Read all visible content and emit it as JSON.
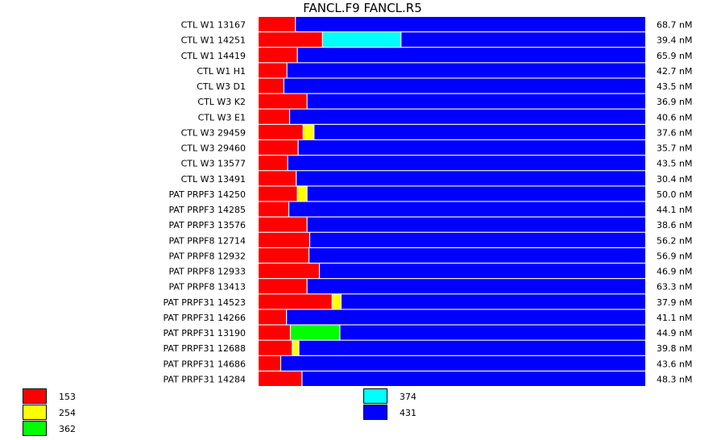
{
  "chart_data": {
    "type": "bar",
    "orientation": "horizontal",
    "stacked": true,
    "normalized": true,
    "title": "FANCL.F9  FANCL.R5",
    "value_unit": "fraction of row",
    "categories": [
      "CTL W1 13167",
      "CTL W1 14251",
      "CTL W1 14419",
      "CTL W1 H1",
      "CTL W3 D1",
      "CTL W3 K2",
      "CTL W3 E1",
      "CTL W3 29459",
      "CTL W3 29460",
      "CTL W3 13577",
      "CTL W3 13491",
      "PAT PRPF3 14250",
      "PAT PRPF3 14285",
      "PAT PRPF3 13576",
      "PAT PRPF8 12714",
      "PAT PRPF8 12932",
      "PAT PRPF8 12933",
      "PAT PRPF8 13413",
      "PAT PRPF31 14523",
      "PAT PRPF31 14266",
      "PAT PRPF31 13190",
      "PAT PRPF31 12688",
      "PAT PRPF31 14686",
      "PAT PRPF31 14284"
    ],
    "concentrations": [
      "68.7 nM",
      "39.4 nM",
      "65.9 nM",
      "42.7 nM",
      "43.5 nM",
      "36.9 nM",
      "40.6 nM",
      "37.6 nM",
      "35.7 nM",
      "43.5 nM",
      "30.4 nM",
      "50.0 nM",
      "44.1 nM",
      "38.6 nM",
      "56.2 nM",
      "56.9 nM",
      "46.9 nM",
      "63.3 nM",
      "37.9 nM",
      "41.1 nM",
      "44.9 nM",
      "39.8 nM",
      "43.6 nM",
      "48.3 nM"
    ],
    "series": [
      {
        "name": "153",
        "color": "#ff0000",
        "values": [
          0.095,
          0.165,
          0.1,
          0.073,
          0.065,
          0.125,
          0.08,
          0.115,
          0.102,
          0.075,
          0.097,
          0.1,
          0.078,
          0.125,
          0.132,
          0.13,
          0.157,
          0.125,
          0.19,
          0.072,
          0.082,
          0.087,
          0.057,
          0.112
        ]
      },
      {
        "name": "254",
        "color": "#ffff00",
        "values": [
          0,
          0,
          0,
          0,
          0,
          0,
          0,
          0.028,
          0,
          0,
          0,
          0.025,
          0,
          0,
          0,
          0,
          0,
          0,
          0.023,
          0,
          0,
          0.017,
          0,
          0
        ]
      },
      {
        "name": "362",
        "color": "#00ff00",
        "values": [
          0,
          0,
          0,
          0,
          0,
          0,
          0,
          0,
          0,
          0,
          0,
          0,
          0,
          0,
          0,
          0,
          0,
          0,
          0,
          0,
          0.128,
          0,
          0,
          0
        ]
      },
      {
        "name": "374",
        "color": "#00ffff",
        "values": [
          0,
          0.203,
          0,
          0,
          0,
          0,
          0,
          0,
          0,
          0,
          0,
          0,
          0,
          0,
          0,
          0,
          0,
          0,
          0,
          0,
          0,
          0,
          0,
          0
        ]
      },
      {
        "name": "431",
        "color": "#0000ff",
        "values": [
          0.905,
          0.632,
          0.9,
          0.927,
          0.935,
          0.875,
          0.92,
          0.857,
          0.898,
          0.925,
          0.903,
          0.875,
          0.922,
          0.875,
          0.868,
          0.87,
          0.843,
          0.875,
          0.787,
          0.928,
          0.79,
          0.896,
          0.943,
          0.888
        ]
      }
    ],
    "legend": {
      "placement": "bottom",
      "entries": [
        {
          "label": "153",
          "color": "#ff0000"
        },
        {
          "label": "254",
          "color": "#ffff00"
        },
        {
          "label": "362",
          "color": "#00ff00"
        },
        {
          "label": "374",
          "color": "#00ffff"
        },
        {
          "label": "431",
          "color": "#0000ff"
        }
      ]
    }
  }
}
